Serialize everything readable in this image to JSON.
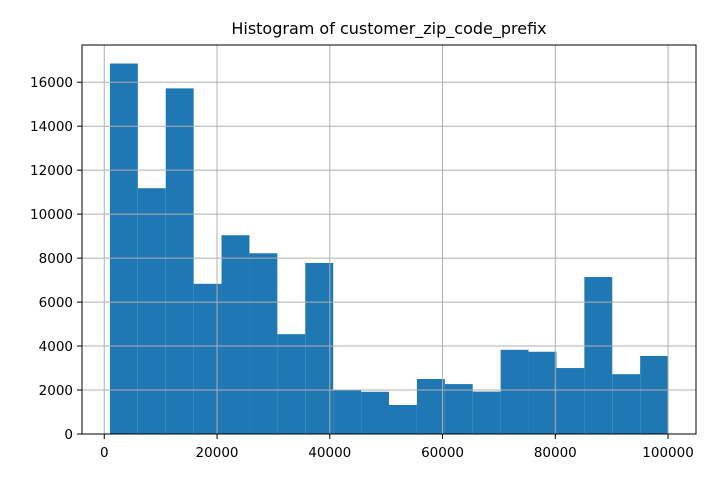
{
  "chart_data": {
    "type": "bar",
    "title": "Histogram of customer_zip_code_prefix",
    "xlabel": "",
    "ylabel": "",
    "bins": [
      {
        "x0": 1003,
        "x1": 5953,
        "value": 16850
      },
      {
        "x0": 5953,
        "x1": 10903,
        "value": 11180
      },
      {
        "x0": 10903,
        "x1": 15853,
        "value": 15720
      },
      {
        "x0": 15853,
        "x1": 20803,
        "value": 6830
      },
      {
        "x0": 20803,
        "x1": 25753,
        "value": 9040
      },
      {
        "x0": 25753,
        "x1": 30703,
        "value": 8220
      },
      {
        "x0": 30703,
        "x1": 35653,
        "value": 4540
      },
      {
        "x0": 35653,
        "x1": 40603,
        "value": 7780
      },
      {
        "x0": 40603,
        "x1": 45553,
        "value": 1980
      },
      {
        "x0": 45553,
        "x1": 50503,
        "value": 1920
      },
      {
        "x0": 50503,
        "x1": 55453,
        "value": 1320
      },
      {
        "x0": 55453,
        "x1": 60403,
        "value": 2500
      },
      {
        "x0": 60403,
        "x1": 65353,
        "value": 2270
      },
      {
        "x0": 65353,
        "x1": 70303,
        "value": 1930
      },
      {
        "x0": 70303,
        "x1": 75253,
        "value": 3830
      },
      {
        "x0": 75253,
        "x1": 80203,
        "value": 3740
      },
      {
        "x0": 80203,
        "x1": 85153,
        "value": 3000
      },
      {
        "x0": 85153,
        "x1": 90103,
        "value": 7140
      },
      {
        "x0": 90103,
        "x1": 95053,
        "value": 2720
      },
      {
        "x0": 95053,
        "x1": 100003,
        "value": 3550
      }
    ],
    "xlim": [
      -3950,
      104956
    ],
    "ylim": [
      0,
      17693
    ],
    "xticks": [
      0,
      20000,
      40000,
      60000,
      80000,
      100000
    ],
    "yticks": [
      0,
      2000,
      4000,
      6000,
      8000,
      10000,
      12000,
      14000,
      16000
    ],
    "grid": true,
    "colors": {
      "bar": "#1f77b4",
      "grid": "#b0b0b0",
      "axis": "#000000"
    }
  }
}
